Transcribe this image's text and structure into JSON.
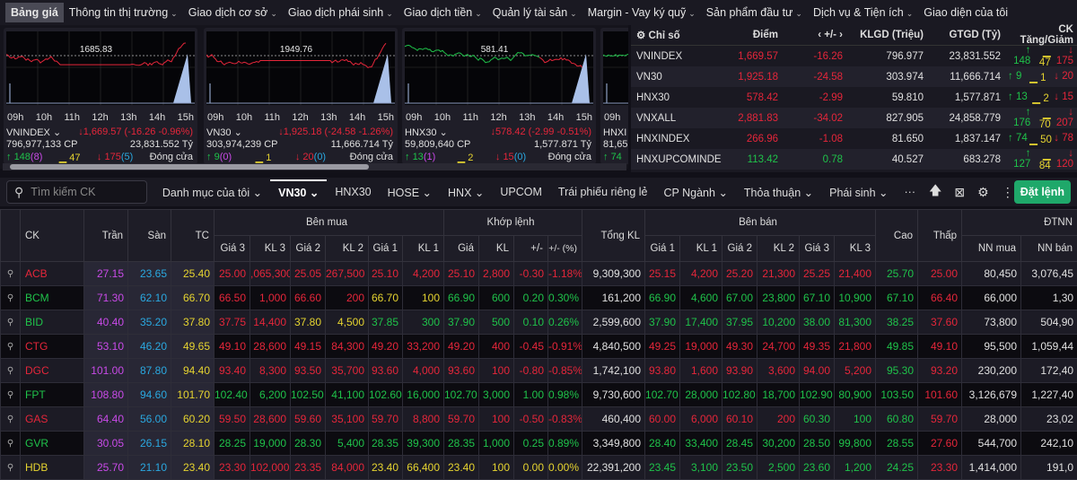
{
  "menu": [
    {
      "label": "Bảng giá",
      "active": true
    },
    {
      "label": "Thông tin thị trường",
      "chev": true
    },
    {
      "label": "Giao dịch cơ sở",
      "chev": true
    },
    {
      "label": "Giao dịch phái sinh",
      "chev": true
    },
    {
      "label": "Giao dịch tiền",
      "chev": true
    },
    {
      "label": "Quản lý tài sản",
      "chev": true
    },
    {
      "label": "Margin - Vay ký quỹ",
      "chev": true
    },
    {
      "label": "Sản phẩm đầu tư",
      "chev": true
    },
    {
      "label": "Dịch vụ & Tiện ích",
      "chev": true
    },
    {
      "label": "Giao diện của tôi"
    }
  ],
  "cards": [
    {
      "ref": "1685.83",
      "name": "VNINDEX",
      "value": "↓1,669.57 (-16.26 -0.96%)",
      "vol": "796,977,133 CP",
      "val": "23,831.552 Tỷ",
      "up": "148",
      "ceil": "(8)",
      "same": "47",
      "down": "175",
      "floor": "(5)",
      "status": "Đóng cửa",
      "trend": "down"
    },
    {
      "ref": "1949.76",
      "name": "VN30",
      "value": "↓1,925.18 (-24.58 -1.26%)",
      "vol": "303,974,239 CP",
      "val": "11,666.714 Tỷ",
      "up": "9",
      "ceil": "(0)",
      "same": "1",
      "down": "20",
      "floor": "(0)",
      "status": "Đóng cửa",
      "trend": "down"
    },
    {
      "ref": "581.41",
      "name": "HNX30",
      "value": "↓578.42 (-2.99 -0.51%)",
      "vol": "59,809,640 CP",
      "val": "1,577.871 Tỷ",
      "up": "13",
      "ceil": "(1)",
      "same": "2",
      "down": "15",
      "floor": "(0)",
      "status": "Đóng cửa",
      "trend": "mixed"
    },
    {
      "ref": "",
      "name": "HNXI",
      "value": "",
      "vol": "81,65",
      "val": "",
      "up": "74",
      "ceil": "",
      "same": "",
      "down": "",
      "floor": "",
      "status": "",
      "trend": "up"
    }
  ],
  "times": [
    "09h",
    "10h",
    "11h",
    "12h",
    "13h",
    "14h",
    "15h"
  ],
  "indices": {
    "headers": [
      "Chỉ số",
      "Điểm",
      "‹ +/- ›",
      "KLGD (Triệu)",
      "GTGD (Tỷ)",
      "CK Tăng/Giảm"
    ],
    "rows": [
      [
        "VNINDEX",
        "1,669.57",
        "-16.26",
        "796.977",
        "23,831.552",
        "148",
        "47",
        "175",
        "dn"
      ],
      [
        "VN30",
        "1,925.18",
        "-24.58",
        "303.974",
        "11,666.714",
        "9",
        "1",
        "20",
        "dn"
      ],
      [
        "HNX30",
        "578.42",
        "-2.99",
        "59.810",
        "1,577.871",
        "13",
        "2",
        "15",
        "dn"
      ],
      [
        "VNXALL",
        "2,881.83",
        "-34.02",
        "827.905",
        "24,858.779",
        "176",
        "70",
        "207",
        "dn"
      ],
      [
        "HNXINDEX",
        "266.96",
        "-1.08",
        "81.650",
        "1,837.147",
        "74",
        "50",
        "78",
        "dn"
      ],
      [
        "HNXUPCOMINDE",
        "113.42",
        "0.78",
        "40.527",
        "683.278",
        "127",
        "84",
        "120",
        "up"
      ]
    ]
  },
  "search": {
    "placeholder": "Tìm kiếm CK"
  },
  "tabs": [
    {
      "label": "Danh mục của tôi",
      "chev": true
    },
    {
      "label": "VN30",
      "chev": true,
      "active": true
    },
    {
      "label": "HNX30"
    },
    {
      "label": "HOSE",
      "chev": true
    },
    {
      "label": "HNX",
      "chev": true
    },
    {
      "label": "UPCOM"
    },
    {
      "label": "Trái phiếu riêng lẻ"
    },
    {
      "label": "CP Ngành",
      "chev": true
    },
    {
      "label": "Thỏa thuận",
      "chev": true
    },
    {
      "label": "Phái sinh",
      "chev": true
    },
    {
      "label": "···"
    }
  ],
  "order_button": "Đặt lệnh",
  "table": {
    "group_headers": {
      "ck": "CK",
      "tran": "Trần",
      "san": "Sàn",
      "tc": "TC",
      "buy": "Bên mua",
      "match": "Khớp lệnh",
      "total": "Tổng KL",
      "sell": "Bên bán",
      "high": "Cao",
      "low": "Thấp",
      "foreign": "ĐTNN"
    },
    "sub_headers": [
      "Giá 3",
      "KL 3",
      "Giá 2",
      "KL 2",
      "Giá 1",
      "KL 1",
      "Giá",
      "KL",
      "+/-",
      "+/- (%)",
      "Giá 1",
      "KL 1",
      "Giá 2",
      "KL 2",
      "Giá 3",
      "KL 3",
      "NN mua",
      "NN bán"
    ],
    "colors": {
      "up": "#1fc24a",
      "down": "#e5263a",
      "ref": "#e6d430",
      "ceiling": "#c94ae8",
      "floor": "#2aa8e0"
    },
    "rows": [
      {
        "ck": "ACB",
        "c": "dn",
        "cells": [
          "27.15",
          "23.65",
          "25.40",
          "25.00",
          ",065,300",
          "25.05",
          "267,500",
          "25.10",
          "4,200",
          "25.10",
          "2,800",
          "-0.30",
          "-1.18%",
          "9,309,300",
          "25.15",
          "4,200",
          "25.20",
          "21,300",
          "25.25",
          "21,400",
          "25.70",
          "25.00",
          "80,450",
          "3,076,45"
        ],
        "cc": "dn dn dn dn dn dn | dn dn dn dn | dn dn dn dn dn dn"
      },
      {
        "ck": "BCM",
        "c": "up",
        "cells": [
          "71.30",
          "62.10",
          "66.70",
          "66.50",
          "1,000",
          "66.60",
          "200",
          "66.70",
          "100",
          "66.90",
          "600",
          "0.20",
          "0.30%",
          "161,200",
          "66.90",
          "4,600",
          "67.00",
          "23,800",
          "67.10",
          "10,900",
          "67.10",
          "66.40",
          "66,000",
          "1,30"
        ],
        "cc": "dn dn dn dn ref ref | up up up up | up up up up up up"
      },
      {
        "ck": "BID",
        "c": "up",
        "cells": [
          "40.40",
          "35.20",
          "37.80",
          "37.75",
          "14,400",
          "37.80",
          "4,500",
          "37.85",
          "300",
          "37.90",
          "500",
          "0.10",
          "0.26%",
          "2,599,600",
          "37.90",
          "17,400",
          "37.95",
          "10,200",
          "38.00",
          "81,300",
          "38.25",
          "37.60",
          "73,800",
          "504,90"
        ],
        "cc": "dn dn ref ref up up | up up up up | up up up up up up"
      },
      {
        "ck": "CTG",
        "c": "dn",
        "cells": [
          "53.10",
          "46.20",
          "49.65",
          "49.10",
          "28,600",
          "49.15",
          "84,300",
          "49.20",
          "33,200",
          "49.20",
          "400",
          "-0.45",
          "-0.91%",
          "4,840,500",
          "49.25",
          "19,000",
          "49.30",
          "24,700",
          "49.35",
          "21,800",
          "49.85",
          "49.10",
          "95,500",
          "1,059,44"
        ],
        "cc": "dn dn dn dn dn dn | dn dn dn dn | dn dn dn dn dn dn"
      },
      {
        "ck": "DGC",
        "c": "dn",
        "cells": [
          "101.00",
          "87.80",
          "94.40",
          "93.40",
          "8,300",
          "93.50",
          "35,700",
          "93.60",
          "4,000",
          "93.60",
          "100",
          "-0.80",
          "-0.85%",
          "1,742,100",
          "93.80",
          "1,600",
          "93.90",
          "3,600",
          "94.00",
          "5,200",
          "95.30",
          "93.20",
          "230,200",
          "172,40"
        ],
        "cc": "dn dn dn dn dn dn | dn dn dn dn | dn dn dn dn dn dn"
      },
      {
        "ck": "FPT",
        "c": "up",
        "cells": [
          "108.80",
          "94.60",
          "101.70",
          "102.40",
          "6,200",
          "102.50",
          "41,100",
          "102.60",
          "16,000",
          "102.70",
          "3,000",
          "1.00",
          "0.98%",
          "9,730,600",
          "102.70",
          "28,000",
          "102.80",
          "18,700",
          "102.90",
          "80,900",
          "103.50",
          "101.60",
          "3,126,679",
          "1,227,40"
        ],
        "cc": "up up up up up up | up up up up | up up up up up up"
      },
      {
        "ck": "GAS",
        "c": "dn",
        "cells": [
          "64.40",
          "56.00",
          "60.20",
          "59.50",
          "28,600",
          "59.60",
          "35,100",
          "59.70",
          "8,800",
          "59.70",
          "100",
          "-0.50",
          "-0.83%",
          "460,400",
          "60.00",
          "6,000",
          "60.10",
          "200",
          "60.30",
          "100",
          "60.80",
          "59.70",
          "28,000",
          "23,02"
        ],
        "cc": "dn dn dn dn dn dn | dn dn dn dn | dn dn dn dn up up"
      },
      {
        "ck": "GVR",
        "c": "up",
        "cells": [
          "30.05",
          "26.15",
          "28.10",
          "28.25",
          "19,000",
          "28.30",
          "5,400",
          "28.35",
          "39,300",
          "28.35",
          "1,000",
          "0.25",
          "0.89%",
          "3,349,800",
          "28.40",
          "33,400",
          "28.45",
          "30,200",
          "28.50",
          "99,800",
          "28.55",
          "27.60",
          "544,700",
          "242,10"
        ],
        "cc": "up up up up up up | up up up up | up up up up up up"
      },
      {
        "ck": "HDB",
        "c": "ref",
        "cells": [
          "25.70",
          "21.10",
          "23.40",
          "23.30",
          "102,000",
          "23.35",
          "84,000",
          "23.40",
          "66,400",
          "23.40",
          "100",
          "0.00",
          "0.00%",
          "22,391,200",
          "23.45",
          "3,100",
          "23.50",
          "2,500",
          "23.60",
          "1,200",
          "24.25",
          "23.30",
          "1,414,000",
          "191,0"
        ],
        "cc": "dn dn dn dn ref ref | ref ref ref ref | up up up up up up"
      }
    ]
  }
}
